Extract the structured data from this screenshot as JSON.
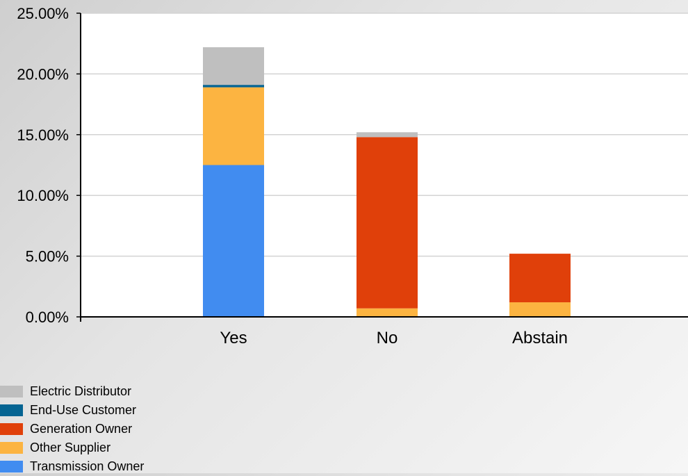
{
  "chart_data": {
    "type": "bar",
    "stacked": true,
    "categories": [
      "Yes",
      "No",
      "Abstain"
    ],
    "series": [
      {
        "name": "Transmission Owner",
        "color": "#418CF0",
        "values": [
          12.5,
          0,
          0
        ]
      },
      {
        "name": "Other Supplier",
        "color": "#FCB441",
        "values": [
          6.4,
          0.7,
          1.2
        ]
      },
      {
        "name": "Generation Owner",
        "color": "#E0400A",
        "values": [
          0,
          14.1,
          4.0
        ]
      },
      {
        "name": "End-Use Customer",
        "color": "#056492",
        "values": [
          0.2,
          0,
          0
        ]
      },
      {
        "name": "Electric Distributor",
        "color": "#BFBFBF",
        "values": [
          3.1,
          0.4,
          0
        ]
      }
    ],
    "legend_order": [
      "Electric Distributor",
      "End-Use Customer",
      "Generation Owner",
      "Other Supplier",
      "Transmission Owner"
    ],
    "y_ticks": [
      "0.00%",
      "5.00%",
      "10.00%",
      "15.00%",
      "20.00%",
      "25.00%"
    ],
    "ylim": [
      0,
      25
    ],
    "grid": true,
    "legend_position": "bottom-left",
    "title": "",
    "xlabel": "",
    "ylabel": ""
  }
}
